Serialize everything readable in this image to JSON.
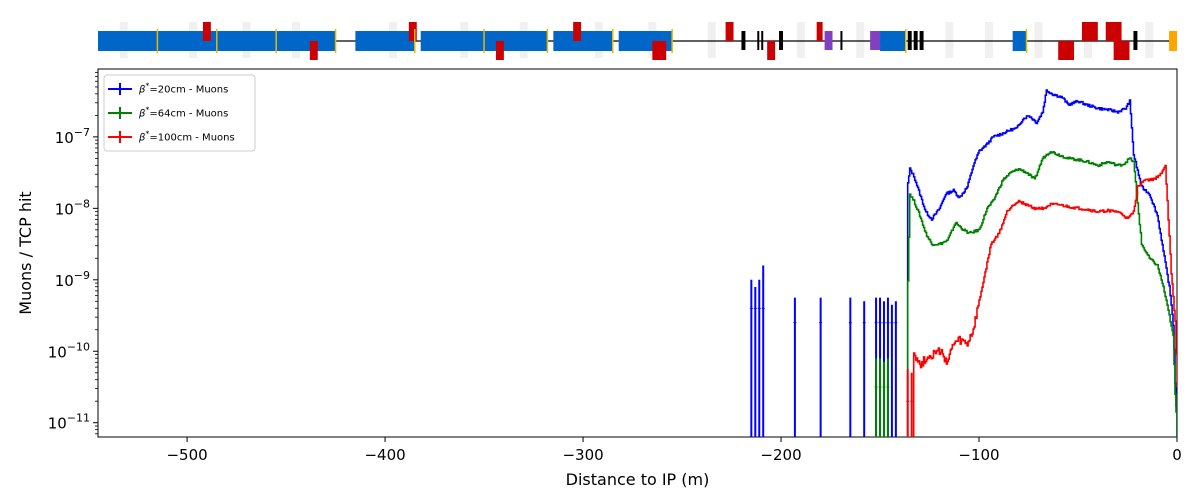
{
  "chart_data": {
    "type": "line",
    "title": "",
    "xlabel": "Distance to IP (m)",
    "ylabel": "Muons / TCP hit",
    "xlim": [
      -545,
      0
    ],
    "ylim_log10": [
      -11.2,
      -6.05
    ],
    "yscale": "log",
    "grid": false,
    "legend_position": "top-left",
    "x_ticks": [
      {
        "value": -500,
        "label": "−500"
      },
      {
        "value": -400,
        "label": "−400"
      },
      {
        "value": -300,
        "label": "−300"
      },
      {
        "value": -200,
        "label": "−200"
      },
      {
        "value": -100,
        "label": "−100"
      },
      {
        "value": 0,
        "label": "0"
      }
    ],
    "y_ticks": [
      {
        "exp": -7,
        "base": "10",
        "sup": "−7"
      },
      {
        "exp": -8,
        "base": "10",
        "sup": "−8"
      },
      {
        "exp": -9,
        "base": "10",
        "sup": "−9"
      },
      {
        "exp": -10,
        "base": "10",
        "sup": "−10"
      },
      {
        "exp": -11,
        "base": "10",
        "sup": "−11"
      }
    ],
    "series": [
      {
        "name": "β*=20cm - Muons",
        "legend_beta": "β",
        "legend_star": "*",
        "legend_rest": "=20cm - Muons",
        "color": "#0000ff",
        "spikes_x": [
          -215,
          -213,
          -211,
          -209,
          -193,
          -180,
          -165,
          -158,
          -152,
          -150,
          -148,
          -146,
          -144,
          -142
        ],
        "spikes_peak": [
          -9.0,
          -9.1,
          -9.0,
          -8.8,
          -9.25,
          -9.25,
          -9.25,
          -9.3,
          -9.25,
          -9.25,
          -9.3,
          -9.25,
          -9.35,
          -9.3
        ],
        "spikes_mid": [
          -9.4,
          -9.4,
          -9.4,
          -9.4,
          -9.6,
          -9.6,
          -9.6,
          -9.6,
          -9.6,
          -9.6,
          -9.6,
          -9.6,
          -9.6,
          -9.6
        ],
        "x": [
          -136,
          -135,
          -133,
          -130,
          -127,
          -124,
          -120,
          -117,
          -113,
          -110,
          -106,
          -103,
          -100,
          -96,
          -93,
          -88,
          -84,
          -81,
          -78,
          -75,
          -71,
          -68,
          -66,
          -63,
          -58,
          -55,
          -50,
          -46,
          -40,
          -35,
          -30,
          -26,
          -24,
          -22,
          -18,
          -14,
          -10,
          -7,
          -4,
          -2,
          -1,
          0
        ],
        "y": [
          -7.65,
          -7.45,
          -7.55,
          -7.8,
          -8.05,
          -8.15,
          -8.0,
          -7.8,
          -7.75,
          -7.85,
          -7.7,
          -7.4,
          -7.2,
          -7.1,
          -7.0,
          -6.95,
          -6.9,
          -6.88,
          -6.75,
          -6.7,
          -6.8,
          -6.65,
          -6.35,
          -6.4,
          -6.45,
          -6.55,
          -6.5,
          -6.55,
          -6.6,
          -6.62,
          -6.65,
          -6.6,
          -6.5,
          -7.25,
          -7.7,
          -7.8,
          -8.1,
          -8.6,
          -9.1,
          -9.6,
          -10.4,
          -11.2
        ]
      },
      {
        "name": "β*=64cm - Muons",
        "legend_beta": "β",
        "legend_star": "*",
        "legend_rest": "=64cm - Muons",
        "color": "#008000",
        "spikes_x": [
          -152,
          -150,
          -148,
          -146
        ],
        "spikes_peak": [
          -10.1,
          -10.1,
          -10.15,
          -10.1
        ],
        "spikes_mid": [
          -10.5,
          -10.5,
          -10.5,
          -10.5
        ],
        "x": [
          -136,
          -135,
          -133,
          -130,
          -127,
          -124,
          -120,
          -116,
          -112,
          -108,
          -105,
          -100,
          -96,
          -93,
          -88,
          -84,
          -80,
          -76,
          -72,
          -68,
          -64,
          -60,
          -55,
          -50,
          -45,
          -40,
          -35,
          -30,
          -27,
          -24,
          -22,
          -18,
          -14,
          -10,
          -7,
          -4,
          -2,
          -1,
          0
        ],
        "y": [
          -9.0,
          -7.8,
          -7.9,
          -8.1,
          -8.35,
          -8.5,
          -8.5,
          -8.45,
          -8.2,
          -8.3,
          -8.35,
          -8.3,
          -8.0,
          -7.9,
          -7.6,
          -7.5,
          -7.45,
          -7.5,
          -7.6,
          -7.3,
          -7.2,
          -7.25,
          -7.3,
          -7.32,
          -7.35,
          -7.4,
          -7.35,
          -7.4,
          -7.38,
          -7.3,
          -7.35,
          -8.5,
          -8.7,
          -8.8,
          -9.1,
          -9.5,
          -9.8,
          -10.6,
          -11.2
        ]
      },
      {
        "name": "β*=100cm - Muons",
        "legend_beta": "β",
        "legend_star": "*",
        "legend_rest": "=100cm - Muons",
        "color": "#ff0000",
        "spikes_x": [
          -136,
          -134
        ],
        "spikes_peak": [
          -10.25,
          -10.3
        ],
        "spikes_mid": [
          -10.7,
          -10.7
        ],
        "x": [
          -133,
          -130,
          -127,
          -124,
          -120,
          -116,
          -113,
          -110,
          -106,
          -103,
          -100,
          -97,
          -94,
          -90,
          -86,
          -83,
          -80,
          -76,
          -72,
          -68,
          -64,
          -60,
          -55,
          -50,
          -45,
          -40,
          -35,
          -30,
          -27,
          -25,
          -22,
          -20,
          -17,
          -13,
          -9,
          -6,
          -3,
          -1,
          0
        ],
        "y": [
          -10.0,
          -10.2,
          -10.1,
          -10.05,
          -10.0,
          -10.15,
          -9.9,
          -9.85,
          -9.9,
          -9.7,
          -9.3,
          -8.9,
          -8.5,
          -8.35,
          -8.05,
          -7.95,
          -7.9,
          -7.95,
          -8.0,
          -8.0,
          -7.95,
          -7.95,
          -7.98,
          -8.0,
          -8.02,
          -8.05,
          -8.03,
          -8.05,
          -8.1,
          -8.15,
          -8.05,
          -7.7,
          -7.6,
          -7.6,
          -7.55,
          -7.4,
          -8.9,
          -9.6,
          -10.5
        ]
      }
    ]
  },
  "beamline": {
    "colors": {
      "blue": "#0066c8",
      "red": "#cc0000",
      "black": "#000000",
      "purple": "#8040c0",
      "orange": "#ffa500",
      "yellow": "#e6b800",
      "gray": "#c8c8c8"
    },
    "elements": [
      {
        "x0": -545,
        "x1": -515,
        "kind": "blue",
        "pos": "center"
      },
      {
        "x0": -515,
        "x1": -485,
        "kind": "blue",
        "pos": "center"
      },
      {
        "x0": -492,
        "x1": -488,
        "kind": "red",
        "pos": "top"
      },
      {
        "x0": -486,
        "x1": -455,
        "kind": "blue",
        "pos": "center"
      },
      {
        "x0": -455,
        "x1": -425,
        "kind": "blue",
        "pos": "center"
      },
      {
        "x0": -438,
        "x1": -434,
        "kind": "red",
        "pos": "bottom"
      },
      {
        "x0": -415,
        "x1": -385,
        "kind": "blue",
        "pos": "center"
      },
      {
        "x0": -388,
        "x1": -384,
        "kind": "red",
        "pos": "top"
      },
      {
        "x0": -382,
        "x1": -350,
        "kind": "blue",
        "pos": "center"
      },
      {
        "x0": -350,
        "x1": -318,
        "kind": "blue",
        "pos": "center"
      },
      {
        "x0": -344,
        "x1": -340,
        "kind": "red",
        "pos": "bottom"
      },
      {
        "x0": -315,
        "x1": -285,
        "kind": "blue",
        "pos": "center"
      },
      {
        "x0": -305,
        "x1": -301,
        "kind": "red",
        "pos": "top"
      },
      {
        "x0": -282,
        "x1": -255,
        "kind": "blue",
        "pos": "center"
      },
      {
        "x0": -265,
        "x1": -258,
        "kind": "red",
        "pos": "bottom"
      },
      {
        "x0": -228,
        "x1": -224,
        "kind": "red",
        "pos": "top"
      },
      {
        "x0": -220,
        "x1": -218,
        "kind": "black",
        "pos": "center"
      },
      {
        "x0": -212,
        "x1": -211,
        "kind": "black",
        "pos": "center"
      },
      {
        "x0": -210,
        "x1": -209,
        "kind": "black",
        "pos": "center"
      },
      {
        "x0": -207,
        "x1": -203,
        "kind": "red",
        "pos": "bottom"
      },
      {
        "x0": -201,
        "x1": -199,
        "kind": "black",
        "pos": "center"
      },
      {
        "x0": -182,
        "x1": -179,
        "kind": "red",
        "pos": "top"
      },
      {
        "x0": -178,
        "x1": -174,
        "kind": "purple",
        "pos": "center"
      },
      {
        "x0": -170,
        "x1": -169,
        "kind": "black",
        "pos": "center"
      },
      {
        "x0": -155,
        "x1": -150,
        "kind": "purple",
        "pos": "center"
      },
      {
        "x0": -150,
        "x1": -137,
        "kind": "blue",
        "pos": "center"
      },
      {
        "x0": -136,
        "x1": -134,
        "kind": "black",
        "pos": "center"
      },
      {
        "x0": -133,
        "x1": -131,
        "kind": "black",
        "pos": "center"
      },
      {
        "x0": -130,
        "x1": -128,
        "kind": "black",
        "pos": "center"
      },
      {
        "x0": -83,
        "x1": -76,
        "kind": "blue",
        "pos": "center"
      },
      {
        "x0": -60,
        "x1": -52,
        "kind": "red",
        "pos": "bottom"
      },
      {
        "x0": -48,
        "x1": -40,
        "kind": "red",
        "pos": "top"
      },
      {
        "x0": -36,
        "x1": -28,
        "kind": "red",
        "pos": "top"
      },
      {
        "x0": -32,
        "x1": -24,
        "kind": "red",
        "pos": "bottom"
      },
      {
        "x0": -22,
        "x1": -20,
        "kind": "black",
        "pos": "center"
      },
      {
        "x0": -4,
        "x1": 0,
        "kind": "orange",
        "pos": "center"
      }
    ],
    "markers": [
      -532,
      -497,
      -470,
      -445,
      -396,
      -360,
      -330,
      -292,
      -265,
      -235,
      -190,
      -160,
      -115,
      -95,
      -70,
      -45,
      -14
    ]
  }
}
